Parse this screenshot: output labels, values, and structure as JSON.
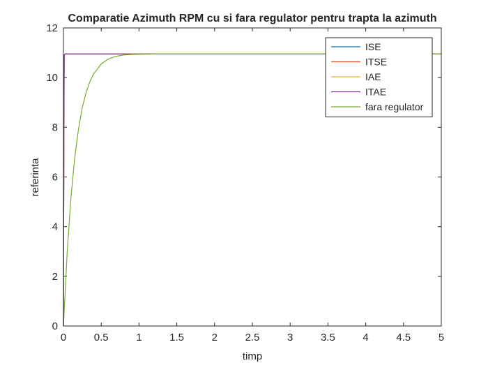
{
  "chart_data": {
    "type": "line",
    "title": "Comparatie Azimuth RPM cu si fara regulator pentru trapta la azimuth",
    "xlabel": "timp",
    "ylabel": "referinta",
    "xlim": [
      0,
      5
    ],
    "ylim": [
      0,
      12
    ],
    "x_ticks": [
      0,
      0.5,
      1,
      1.5,
      2,
      2.5,
      3,
      3.5,
      4,
      4.5,
      5
    ],
    "x_tick_labels": [
      "0",
      "0.5",
      "1",
      "1.5",
      "2",
      "2.5",
      "3",
      "3.5",
      "4",
      "4.5",
      "5"
    ],
    "y_ticks": [
      0,
      2,
      4,
      6,
      8,
      10,
      12
    ],
    "y_tick_labels": [
      "0",
      "2",
      "4",
      "6",
      "8",
      "10",
      "12"
    ],
    "grid": false,
    "legend_position": "top-right",
    "series": [
      {
        "name": "ISE",
        "color": "#0072BD",
        "x": [
          0,
          0.005,
          0.01,
          0.02,
          5
        ],
        "y": [
          0,
          6.0,
          10.9,
          10.95,
          10.95
        ]
      },
      {
        "name": "ITSE",
        "color": "#D95319",
        "x": [
          0,
          0.005,
          0.01,
          0.02,
          5
        ],
        "y": [
          0,
          6.0,
          10.9,
          10.95,
          10.95
        ]
      },
      {
        "name": "IAE",
        "color": "#EDB120",
        "x": [
          0,
          0.005,
          0.01,
          0.02,
          5
        ],
        "y": [
          0,
          6.0,
          10.9,
          10.95,
          10.95
        ]
      },
      {
        "name": "ITAE",
        "color": "#7E2F8E",
        "x": [
          0,
          0.005,
          0.01,
          0.02,
          5
        ],
        "y": [
          0,
          6.0,
          10.9,
          10.95,
          10.95
        ]
      },
      {
        "name": "fara regulator",
        "color": "#77AC30",
        "x": [
          0,
          0.05,
          0.1,
          0.15,
          0.2,
          0.25,
          0.3,
          0.35,
          0.4,
          0.5,
          0.6,
          0.7,
          0.8,
          0.9,
          1.0,
          1.2,
          1.4,
          1.6,
          2.0,
          3.0,
          4.0,
          5.0
        ],
        "y": [
          0,
          3.0,
          5.2,
          6.8,
          7.95,
          8.8,
          9.4,
          9.84,
          10.15,
          10.55,
          10.76,
          10.86,
          10.91,
          10.93,
          10.94,
          10.95,
          10.95,
          10.95,
          10.95,
          10.95,
          10.95,
          10.95
        ]
      }
    ]
  }
}
